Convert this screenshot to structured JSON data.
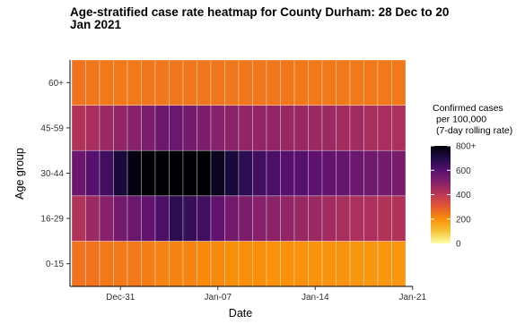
{
  "chart_data": {
    "type": "heatmap",
    "title_line1": "Age-stratified case rate heatmap for County Durham: 28 Dec to 20",
    "title_line2": "Jan 2021",
    "xlabel": "Date",
    "ylabel": "Age group",
    "x_ticks": [
      {
        "label": "Dec-31",
        "day": 3
      },
      {
        "label": "Jan-07",
        "day": 10
      },
      {
        "label": "Jan-14",
        "day": 17
      },
      {
        "label": "Jan-21",
        "day": 24
      }
    ],
    "x_day_labels": [
      "2020-12-28",
      "2020-12-29",
      "2020-12-30",
      "2020-12-31",
      "2021-01-01",
      "2021-01-02",
      "2021-01-03",
      "2021-01-04",
      "2021-01-05",
      "2021-01-06",
      "2021-01-07",
      "2021-01-08",
      "2021-01-09",
      "2021-01-10",
      "2021-01-11",
      "2021-01-12",
      "2021-01-13",
      "2021-01-14",
      "2021-01-15",
      "2021-01-16",
      "2021-01-17",
      "2021-01-18",
      "2021-01-19",
      "2021-01-20"
    ],
    "age_groups": [
      "0-15",
      "16-29",
      "30-44",
      "45-59",
      "60+"
    ],
    "values": {
      "60+": [
        250,
        245,
        240,
        240,
        240,
        245,
        245,
        245,
        245,
        245,
        245,
        245,
        245,
        245,
        245,
        245,
        240,
        240,
        240,
        240,
        240,
        240,
        240,
        240
      ],
      "45-59": [
        420,
        440,
        460,
        480,
        500,
        520,
        560,
        560,
        540,
        520,
        500,
        490,
        480,
        480,
        480,
        470,
        470,
        460,
        460,
        450,
        450,
        440,
        440,
        430
      ],
      "30-44": [
        560,
        600,
        640,
        720,
        780,
        820,
        830,
        830,
        840,
        800,
        760,
        720,
        680,
        640,
        620,
        600,
        600,
        590,
        580,
        570,
        560,
        550,
        540,
        530
      ],
      "16-29": [
        420,
        460,
        500,
        540,
        560,
        580,
        620,
        680,
        660,
        640,
        580,
        540,
        520,
        500,
        490,
        480,
        470,
        460,
        450,
        440,
        430,
        430,
        420,
        420
      ],
      "0-15": [
        250,
        250,
        240,
        240,
        240,
        230,
        220,
        220,
        220,
        210,
        210,
        200,
        200,
        200,
        195,
        195,
        195,
        190,
        190,
        190,
        185,
        185,
        185,
        185
      ]
    },
    "color_scale": {
      "min": 0,
      "max": 800,
      "ticks": [
        0,
        200,
        400,
        600,
        800
      ],
      "tick_labels": [
        "0",
        "200",
        "400",
        "600",
        "800+"
      ],
      "stops": [
        "#fcffa4",
        "#f7c43a",
        "#f98e09",
        "#e45a31",
        "#bc3754",
        "#87216b",
        "#57106e",
        "#210c4a",
        "#000004"
      ]
    },
    "legend": {
      "title_lines": [
        "Confirmed cases",
        "per 100,000",
        "(7-day rolling rate)"
      ],
      "placement": "right"
    },
    "grid": true
  }
}
